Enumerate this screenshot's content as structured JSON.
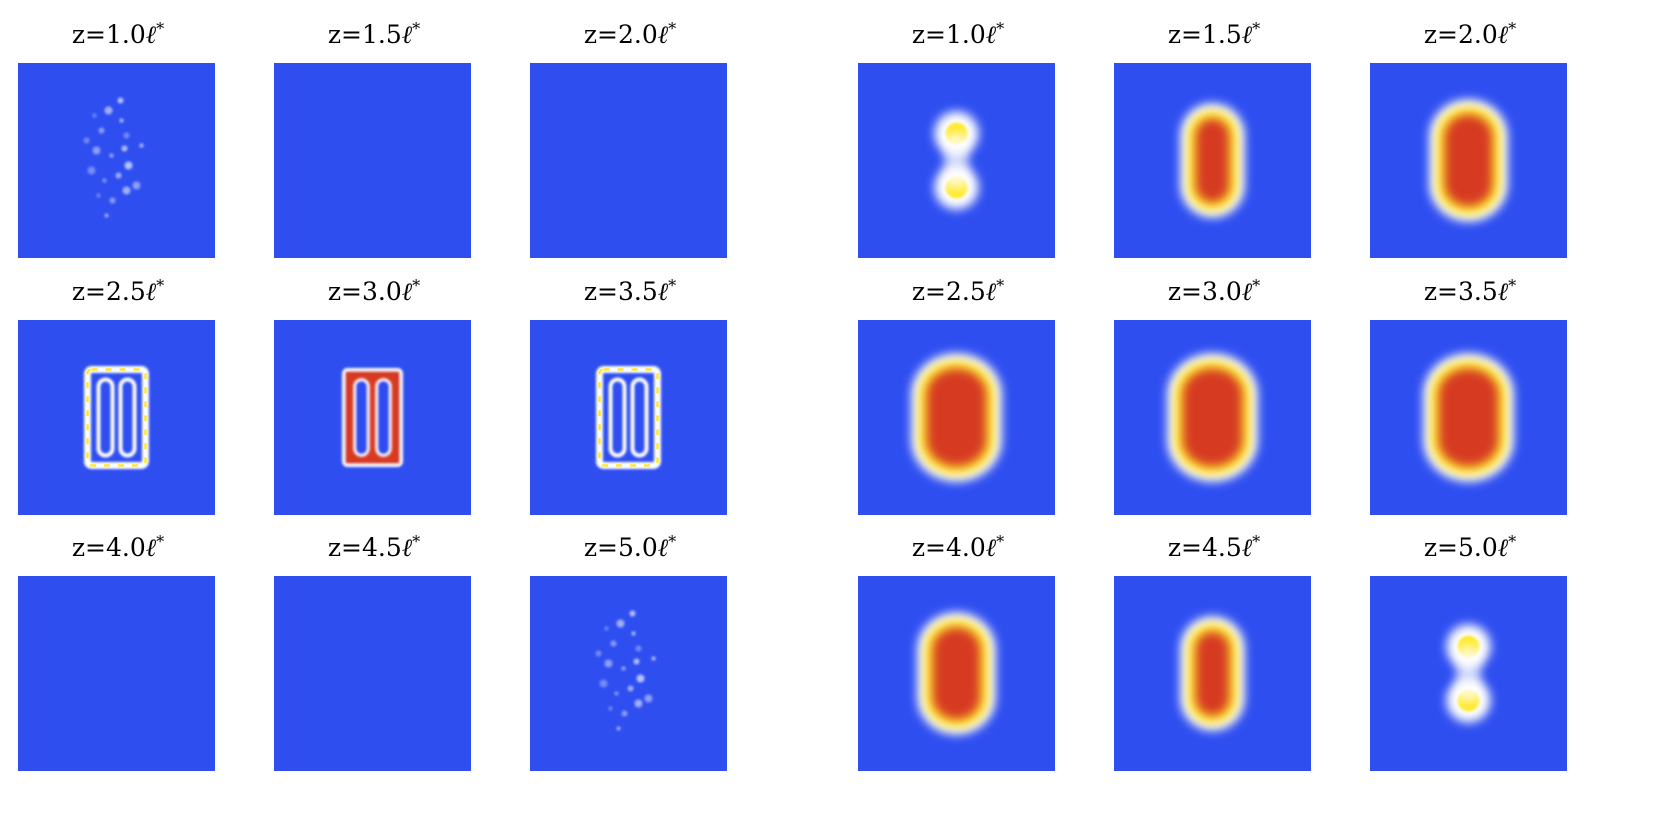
{
  "unit_glyph": "ℓ",
  "unit_sup": "*",
  "colors": {
    "background": "#2e4ef0",
    "low": "#ffffff",
    "mid": "#ffe92b",
    "high": "#d63a24"
  },
  "left": {
    "panels": [
      {
        "z": "z=1.0",
        "pattern": "faint-speckle"
      },
      {
        "z": "z=1.5",
        "pattern": "empty"
      },
      {
        "z": "z=2.0",
        "pattern": "empty"
      },
      {
        "z": "z=2.5",
        "pattern": "rectangle-outline"
      },
      {
        "z": "z=3.0",
        "pattern": "rectangle-filled"
      },
      {
        "z": "z=3.5",
        "pattern": "rectangle-outline"
      },
      {
        "z": "z=4.0",
        "pattern": "empty"
      },
      {
        "z": "z=4.5",
        "pattern": "empty"
      },
      {
        "z": "z=5.0",
        "pattern": "faint-speckle"
      }
    ]
  },
  "right": {
    "panels": [
      {
        "z": "z=1.0",
        "pattern": "two-dots"
      },
      {
        "z": "z=1.5",
        "pattern": "blob-small"
      },
      {
        "z": "z=2.0",
        "pattern": "blob-medium"
      },
      {
        "z": "z=2.5",
        "pattern": "blob-large"
      },
      {
        "z": "z=3.0",
        "pattern": "blob-large"
      },
      {
        "z": "z=3.5",
        "pattern": "blob-large"
      },
      {
        "z": "z=4.0",
        "pattern": "blob-medium"
      },
      {
        "z": "z=4.5",
        "pattern": "blob-small"
      },
      {
        "z": "z=5.0",
        "pattern": "two-dots"
      }
    ]
  }
}
